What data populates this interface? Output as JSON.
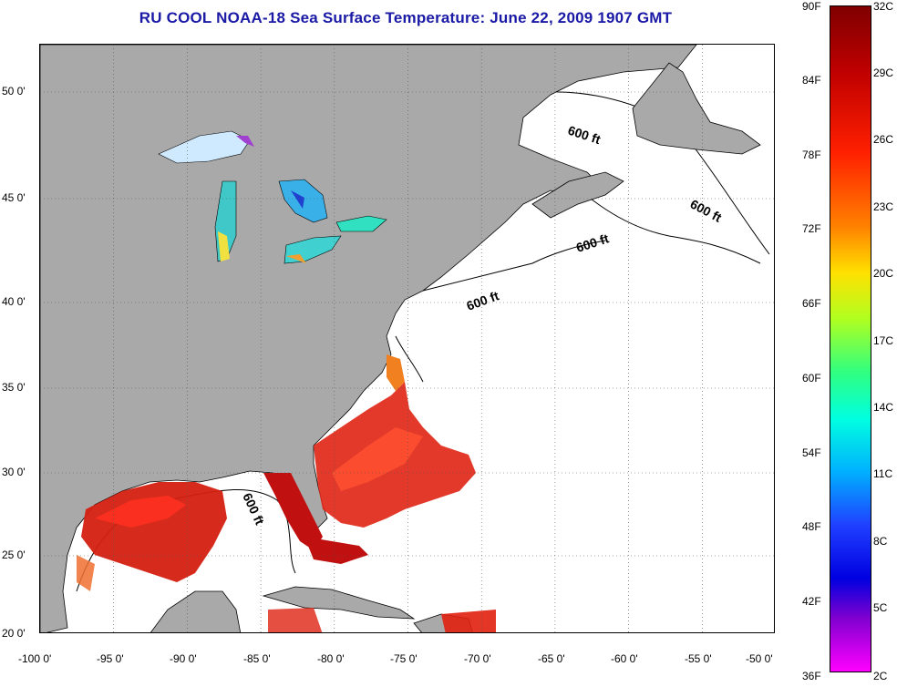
{
  "title": "RU COOL  NOAA-18  Sea Surface Temperature:  June 22, 2009 1907 GMT",
  "map": {
    "lon_range": [
      -100,
      -50
    ],
    "lat_range": [
      20,
      52.5
    ],
    "lon_ticks": [
      "-100 0'",
      "-95 0'",
      "-90 0'",
      "-85 0'",
      "-80 0'",
      "-75 0'",
      "-70 0'",
      "-65 0'",
      "-60 0'",
      "-55 0'",
      "-50 0'"
    ],
    "lat_ticks": [
      "20 0'",
      "25 0'",
      "30 0'",
      "35 0'",
      "40 0'",
      "45 0'",
      "50 0'"
    ],
    "contour_labels": [
      "600 ft",
      "600 ft",
      "600 ft",
      "600 ft",
      "600 ft"
    ],
    "land_color": "#a9a9a9",
    "grid": "dotted"
  },
  "colorbar": {
    "fahrenheit": [
      "90F",
      "84F",
      "78F",
      "72F",
      "66F",
      "60F",
      "54F",
      "48F",
      "42F",
      "36F"
    ],
    "celsius": [
      "32C",
      "29C",
      "26C",
      "23C",
      "20C",
      "17C",
      "14C",
      "11C",
      "8C",
      "5C",
      "2C"
    ]
  }
}
